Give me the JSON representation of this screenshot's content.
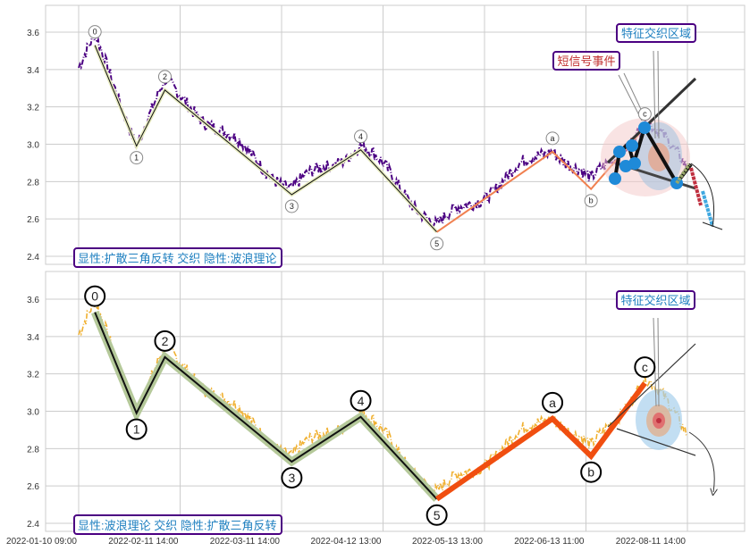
{
  "chart_data": [
    {
      "type": "line",
      "panel": "top",
      "legend_box": "显性:扩散三角反转 交织 隐性:波浪理论",
      "ylim": [
        2.35,
        3.75
      ],
      "yticks": [
        "2.4",
        "2.6",
        "2.8",
        "3.0",
        "3.2",
        "3.4",
        "3.6"
      ],
      "price_color": "#4b0082",
      "waves": [
        {
          "label": "0",
          "t": 0.16,
          "v": 3.53
        },
        {
          "label": "1",
          "t": 0.57,
          "v": 2.99
        },
        {
          "label": "2",
          "t": 0.85,
          "v": 3.29
        },
        {
          "label": "3",
          "t": 2.1,
          "v": 2.73
        },
        {
          "label": "4",
          "t": 2.78,
          "v": 2.97
        },
        {
          "label": "5",
          "t": 3.53,
          "v": 2.53
        },
        {
          "label": "a",
          "t": 4.67,
          "v": 2.96
        },
        {
          "label": "b",
          "t": 5.05,
          "v": 2.76
        },
        {
          "label": "c",
          "t": 5.58,
          "v": 3.09
        }
      ],
      "annotations": [
        "特征交织区域",
        "短信号事件"
      ]
    },
    {
      "type": "line",
      "panel": "bottom",
      "legend_box": "显性:波浪理论 交织 隐性:扩散三角反转",
      "ylim": [
        2.35,
        3.75
      ],
      "yticks": [
        "2.4",
        "2.6",
        "2.8",
        "3.0",
        "3.2",
        "3.4",
        "3.6"
      ],
      "price_color": "#f0b030",
      "waves": [
        {
          "label": "0",
          "t": 0.16,
          "v": 3.53
        },
        {
          "label": "1",
          "t": 0.57,
          "v": 2.99
        },
        {
          "label": "2",
          "t": 0.85,
          "v": 3.29
        },
        {
          "label": "3",
          "t": 2.1,
          "v": 2.73
        },
        {
          "label": "4",
          "t": 2.78,
          "v": 2.97
        },
        {
          "label": "5",
          "t": 3.53,
          "v": 2.53
        },
        {
          "label": "a",
          "t": 4.67,
          "v": 2.96
        },
        {
          "label": "b",
          "t": 5.05,
          "v": 2.76
        },
        {
          "label": "c",
          "t": 5.58,
          "v": 3.15
        }
      ],
      "annotations": [
        "特征交织区域"
      ]
    }
  ],
  "xticks": [
    "2022-01-10 09:00",
    "2022-02-11 14:00",
    "2022-03-11 14:00",
    "2022-04-12 13:00",
    "2022-05-13 13:00",
    "2022-06-13 11:00",
    "2022-08-11 14:00"
  ],
  "xlim": [
    -0.33,
    6.56
  ]
}
